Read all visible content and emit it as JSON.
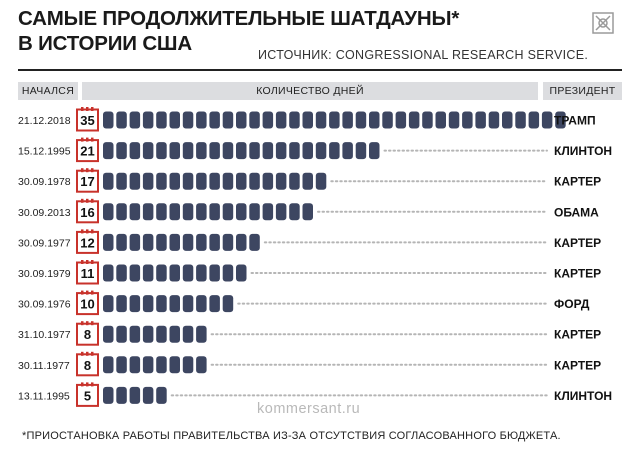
{
  "title_lines": [
    "САМЫЕ ПРОДОЛЖИТЕЛЬНЫЕ ШАТДАУНЫ*",
    "В ИСТОРИИ США"
  ],
  "source": "ИСТОЧНИК: CONGRESSIONAL RESEARCH SERVICE.",
  "headers": {
    "started": "НАЧАЛСЯ",
    "days": "КОЛИЧЕСТВО ДНЕЙ",
    "president": "ПРЕЗИДЕНТ"
  },
  "watermark": "kommersant.ru",
  "footnote": "*ПРИОСТАНОВКА РАБОТЫ ПРАВИТЕЛЬСТВА ИЗ-ЗА ОТСУТСТВИЯ СОГЛАСОВАННОГО БЮДЖЕТА.",
  "colors": {
    "bar": "#3d4661",
    "badge": "#c8322b",
    "header_bg": "#dcdde0",
    "dots": "#b5b5b5"
  },
  "chart_data": {
    "type": "bar",
    "orientation": "horizontal",
    "unit_mark": "one segment per day",
    "columns": [
      "НАЧАЛСЯ",
      "КОЛИЧЕСТВО ДНЕЙ",
      "ПРЕЗИДЕНТ"
    ],
    "rows": [
      {
        "date": "21.12.2018",
        "days": 35,
        "president": "ТРАМП"
      },
      {
        "date": "15.12.1995",
        "days": 21,
        "president": "КЛИНТОН"
      },
      {
        "date": "30.09.1978",
        "days": 17,
        "president": "КАРТЕР"
      },
      {
        "date": "30.09.2013",
        "days": 16,
        "president": "ОБАМА"
      },
      {
        "date": "30.09.1977",
        "days": 12,
        "president": "КАРТЕР"
      },
      {
        "date": "30.09.1979",
        "days": 11,
        "president": "КАРТЕР"
      },
      {
        "date": "30.09.1976",
        "days": 10,
        "president": "ФОРД"
      },
      {
        "date": "31.10.1977",
        "days": 8,
        "president": "КАРТЕР"
      },
      {
        "date": "30.11.1977",
        "days": 8,
        "president": "КАРТЕР"
      },
      {
        "date": "13.11.1995",
        "days": 5,
        "president": "КЛИНТОН"
      }
    ]
  }
}
